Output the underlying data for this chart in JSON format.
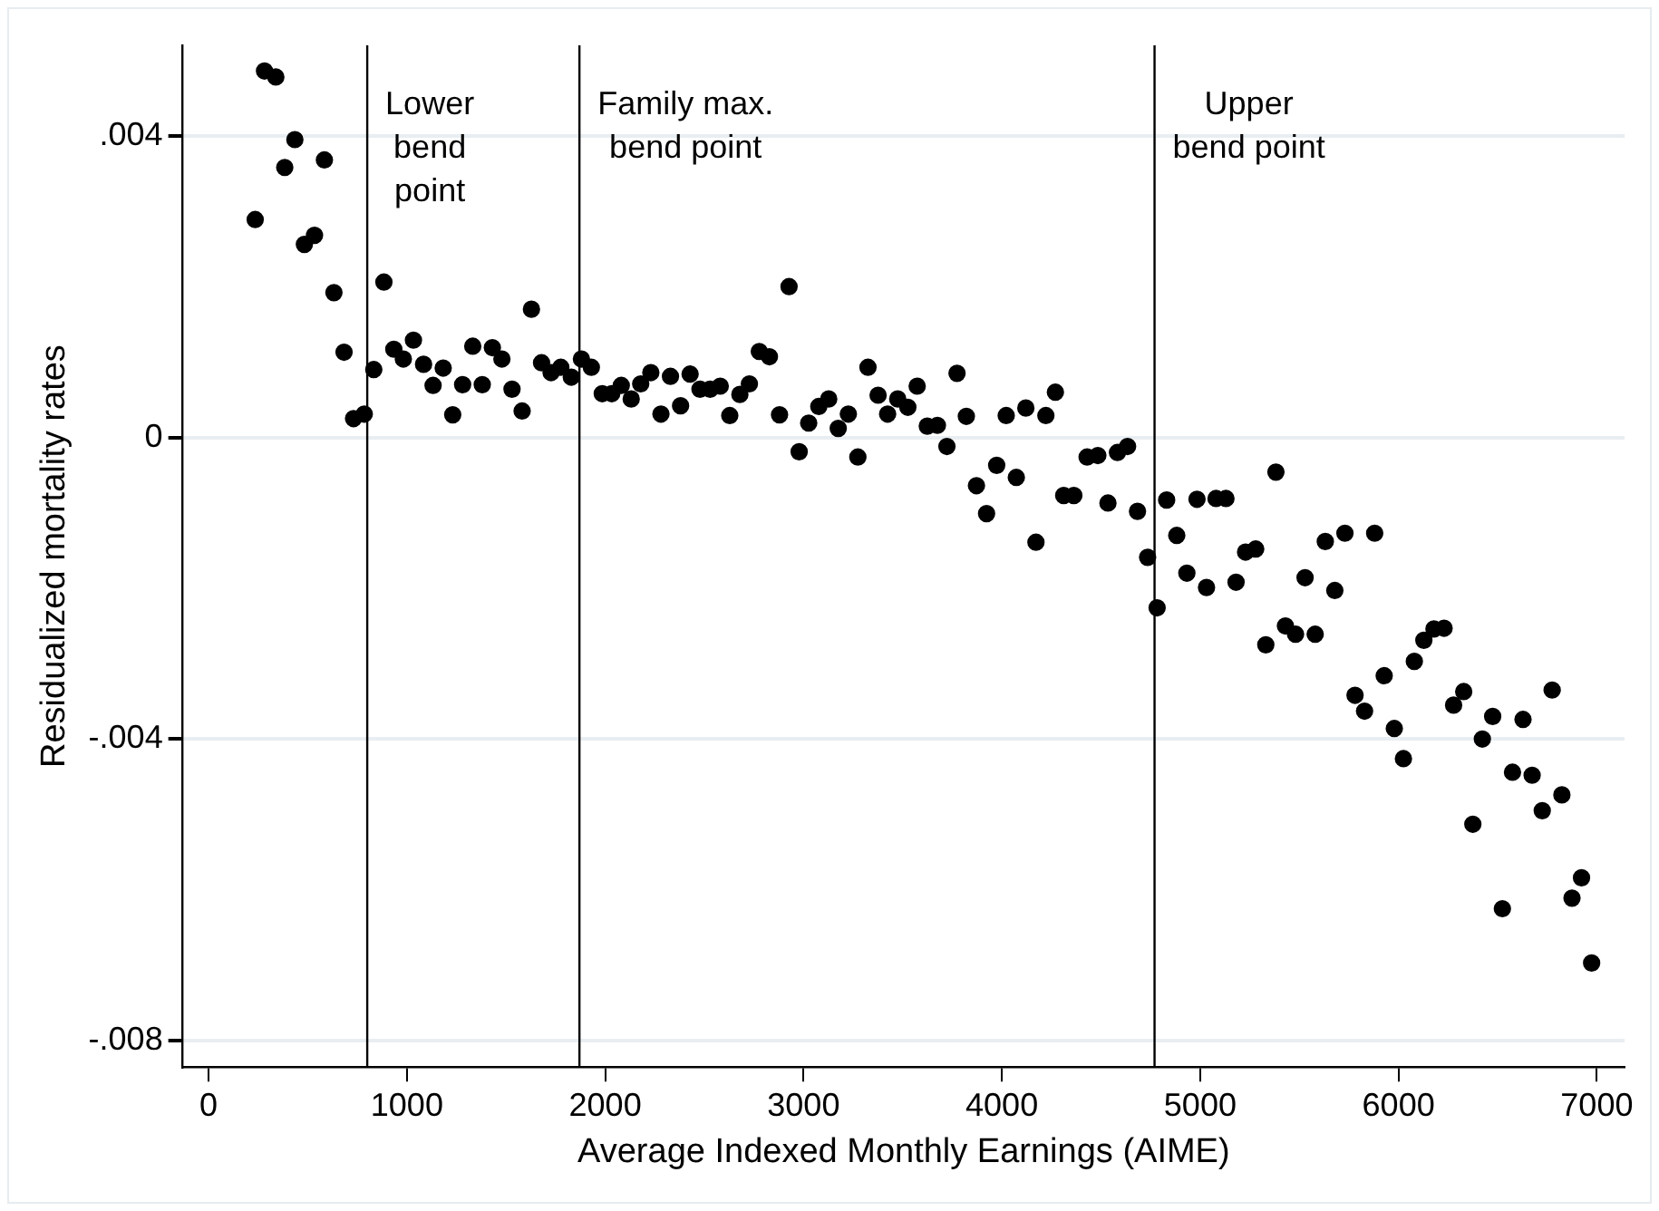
{
  "chart_data": {
    "type": "scatter",
    "xlabel": "Average Indexed Monthly Earnings (AIME)",
    "ylabel": "Residualized mortality rates",
    "xlim": [
      -130,
      7140
    ],
    "xticks": [
      0,
      1000,
      2000,
      3000,
      4000,
      5000,
      6000,
      7000
    ],
    "ylim": [
      -0.00835,
      0.0052
    ],
    "yticks": [
      {
        "value": -0.008,
        "label": "-.008"
      },
      {
        "value": -0.004,
        "label": "-.004"
      },
      {
        "value": 0,
        "label": "0"
      },
      {
        "value": 0.004,
        "label": ".004"
      }
    ],
    "grid": "y",
    "legend": false,
    "marker": "circle",
    "ref_lines": [
      {
        "axis": "x",
        "value": 800,
        "label": "Lower\nbend\npoint",
        "color": "#000000"
      },
      {
        "axis": "x",
        "value": 1870,
        "label": "Family max.\nbend point",
        "color": "#000000"
      },
      {
        "axis": "x",
        "value": 4770,
        "label": "Upper\nbend point",
        "color": "#000000"
      }
    ],
    "series": [
      {
        "color": "#000000",
        "x": [
          235,
          282,
          339,
          384,
          435,
          483,
          534,
          584,
          632,
          683,
          731,
          785,
          833,
          884,
          934,
          982,
          1033,
          1084,
          1132,
          1183,
          1231,
          1281,
          1332,
          1380,
          1431,
          1479,
          1530,
          1581,
          1628,
          1679,
          1727,
          1776,
          1829,
          1880,
          1930,
          1985,
          2033,
          2081,
          2131,
          2179,
          2230,
          2281,
          2329,
          2380,
          2428,
          2478,
          2529,
          2580,
          2628,
          2679,
          2727,
          2777,
          2828,
          2879,
          2927,
          2978,
          3026,
          3077,
          3127,
          3175,
          3226,
          3274,
          3325,
          3376,
          3424,
          3475,
          3526,
          3573,
          3624,
          3675,
          3723,
          3774,
          3821,
          3872,
          3923,
          3974,
          4022,
          4073,
          4121,
          4172,
          4222,
          4270,
          4312,
          4363,
          4430,
          4484,
          4535,
          4583,
          4634,
          4684,
          4735,
          4783,
          4831,
          4882,
          4933,
          4984,
          5032,
          5080,
          5130,
          5181,
          5229,
          5280,
          5331,
          5382,
          5430,
          5481,
          5529,
          5580,
          5631,
          5679,
          5730,
          5781,
          5829,
          5880,
          5928,
          5979,
          6025,
          6080,
          6128,
          6179,
          6230,
          6278,
          6329,
          6375,
          6423,
          6475,
          6524,
          6575,
          6628,
          6674,
          6725,
          6775,
          6824,
          6875,
          6923,
          6974
        ],
        "values": [
          0.00289,
          0.00486,
          0.00478,
          0.00358,
          0.00395,
          0.00256,
          0.00268,
          0.00368,
          0.00192,
          0.00113,
          0.00025,
          0.00031,
          0.0009,
          0.00206,
          0.00117,
          0.00104,
          0.00129,
          0.00097,
          0.00069,
          0.00092,
          0.0003,
          0.0007,
          0.00121,
          0.0007,
          0.00119,
          0.00104,
          0.00064,
          0.00035,
          0.0017,
          0.00099,
          0.00086,
          0.00093,
          0.0008,
          0.00104,
          0.00093,
          0.00058,
          0.00058,
          0.00069,
          0.00051,
          0.00071,
          0.00086,
          0.00031,
          0.00081,
          0.00042,
          0.00084,
          0.00064,
          0.00064,
          0.00068,
          0.00029,
          0.00057,
          0.00071,
          0.00114,
          0.00107,
          0.0003,
          0.002,
          -0.00019,
          0.00019,
          0.00041,
          0.00051,
          0.00012,
          0.00031,
          -0.00026,
          0.00093,
          0.00056,
          0.00031,
          0.00051,
          0.0004,
          0.00068,
          0.00015,
          0.00016,
          -0.00012,
          0.00085,
          0.00028,
          -0.00064,
          -0.00101,
          -0.00037,
          0.00029,
          -0.00053,
          0.00039,
          -0.00139,
          0.00029,
          0.0006,
          -0.00077,
          -0.00077,
          -0.00026,
          -0.00024,
          -0.00087,
          -0.0002,
          -0.00012,
          -0.00098,
          -0.00159,
          -0.00226,
          -0.00083,
          -0.0013,
          -0.0018,
          -0.00082,
          -0.00199,
          -0.00081,
          -0.00081,
          -0.00192,
          -0.00152,
          -0.00148,
          -0.00275,
          -0.00046,
          -0.0025,
          -0.00261,
          -0.00186,
          -0.00261,
          -0.00138,
          -0.00203,
          -0.00127,
          -0.00342,
          -0.00363,
          -0.00127,
          -0.00316,
          -0.00386,
          -0.00426,
          -0.00297,
          -0.00269,
          -0.00254,
          -0.00253,
          -0.00355,
          -0.00337,
          -0.00513,
          -0.004,
          -0.0037,
          -0.00625,
          -0.00444,
          -0.00374,
          -0.00448,
          -0.00495,
          -0.00335,
          -0.00474,
          -0.00611,
          -0.00584,
          -0.00697
        ]
      }
    ]
  }
}
